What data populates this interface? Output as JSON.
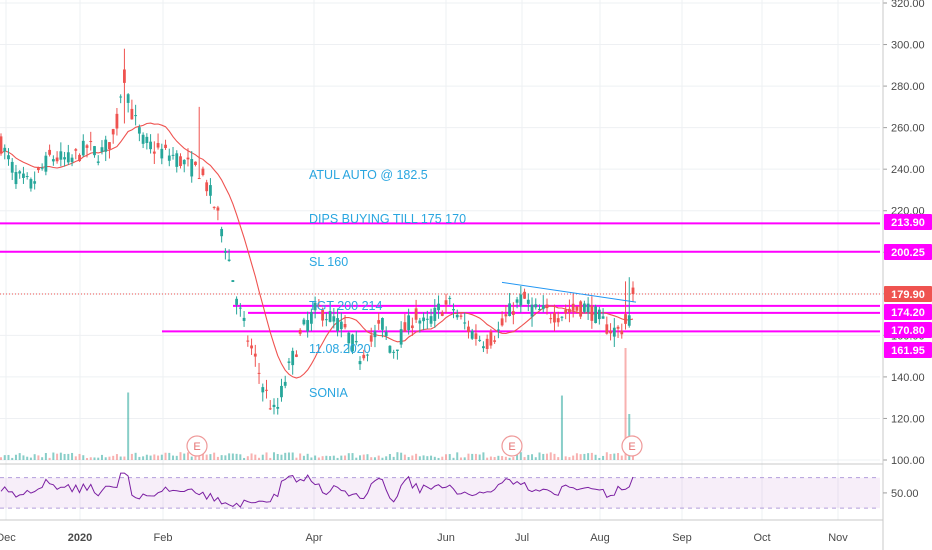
{
  "chart_data": {
    "type": "candlestick",
    "symbol_annotation": [
      "ATUL AUTO @ 182.5",
      "DIPS BUYING TILL 175 170",
      "SL 160",
      "TGT 200 214",
      "11.08.2020",
      "SONIA"
    ],
    "x_tick_labels": [
      "Dec",
      "2020",
      "Feb",
      "Apr",
      "Jun",
      "Jul",
      "Aug",
      "Sep",
      "Oct",
      "Nov"
    ],
    "y_tick_labels": [
      "320.00",
      "300.00",
      "280.00",
      "260.00",
      "240.00",
      "220.00",
      "200.00",
      "180.00",
      "160.00",
      "140.00",
      "120.00",
      "100.00"
    ],
    "ylim": [
      100,
      320
    ],
    "last_price": "179.90",
    "levels": [
      {
        "value": 213.9,
        "label": "213.90",
        "color": "#ff00ff"
      },
      {
        "value": 200.25,
        "label": "200.25",
        "color": "#ff00ff"
      },
      {
        "value": 174.2,
        "label": "174.20",
        "color": "#ff00ff"
      },
      {
        "value": 170.8,
        "label": "170.80",
        "color": "#ff00ff"
      },
      {
        "value": 161.95,
        "label": "161.95",
        "color": "#ff00ff"
      }
    ],
    "price_labels": [
      {
        "value": 179.9,
        "label": "179.90",
        "color": "#ef5350"
      },
      {
        "value": 213.9,
        "label": "213.90",
        "color": "#ff00ff"
      },
      {
        "value": 200.25,
        "label": "200.25",
        "color": "#ff00ff"
      },
      {
        "value": 174.2,
        "label": "174.20",
        "color": "#ff00ff"
      },
      {
        "value": 170.8,
        "label": "170.80",
        "color": "#ff00ff"
      },
      {
        "value": 161.95,
        "label": "161.95",
        "color": "#ff00ff"
      }
    ],
    "trendline": {
      "from": 185.5,
      "to": 176,
      "color": "#2196f3"
    },
    "moving_average_color": "#ef5350",
    "rsi": {
      "label": "50.00",
      "band": [
        30,
        70
      ],
      "color": "#7b1fa2"
    },
    "earnings_marker": "E",
    "colors": {
      "up": "#26a69a",
      "down": "#ef5350",
      "grid": "#eef0f3",
      "axis_text": "#4a4a4a"
    }
  }
}
